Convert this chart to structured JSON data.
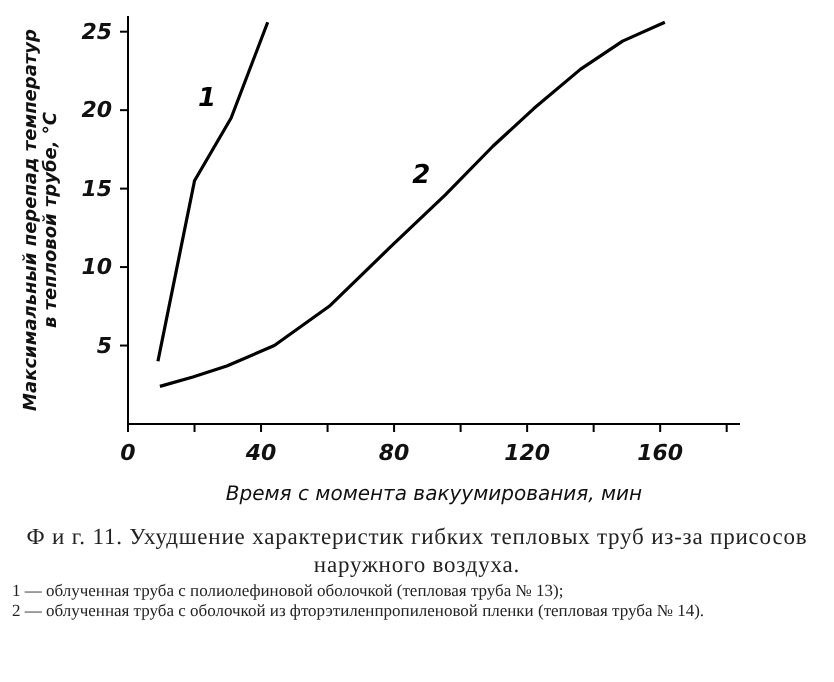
{
  "chart_data": {
    "type": "line",
    "title": "Ф и г.  11. Ухудшение характеристик гибких тепловых труб из-за присосов наружного воздуха.",
    "xlabel": "Время с момента вакуумирования, мин",
    "ylabel": "Максимальный перепад температур в тепловой трубе, °С",
    "xlim": [
      0,
      184
    ],
    "ylim": [
      0,
      26
    ],
    "xticks": [
      0,
      {
        "value": 20,
        "label": null
      },
      40,
      {
        "value": 60,
        "label": null
      },
      80,
      {
        "value": 100,
        "label": null
      },
      120,
      {
        "value": 140,
        "label": null
      },
      160,
      {
        "value": 180,
        "label": null
      }
    ],
    "yticks": [
      5,
      10,
      15,
      20,
      25
    ],
    "grid": false,
    "legend": false,
    "marker": "none",
    "line_style": "solid",
    "series": [
      {
        "name": "1",
        "color": "#000000",
        "x": [
          9,
          20,
          31,
          42
        ],
        "values": [
          4,
          15.5,
          19.5,
          25.6
        ]
      },
      {
        "name": "2",
        "color": "#000000",
        "x": [
          9.6,
          19.5,
          29.7,
          44,
          60.5,
          79,
          95.4,
          109.7,
          122,
          136,
          148.7,
          161.4
        ],
        "values": [
          2.4,
          3,
          3.7,
          5,
          7.5,
          11.3,
          14.6,
          17.7,
          20.1,
          22.6,
          24.4,
          25.6
        ]
      }
    ],
    "annotations": [
      "1 — облученная труба с полиолефиновой оболочкой (тепловая труба № 13);",
      "2 — облученная труба с оболочкой из фторэтиленпропиленовой пленки (тепловая труба № 14)."
    ]
  }
}
